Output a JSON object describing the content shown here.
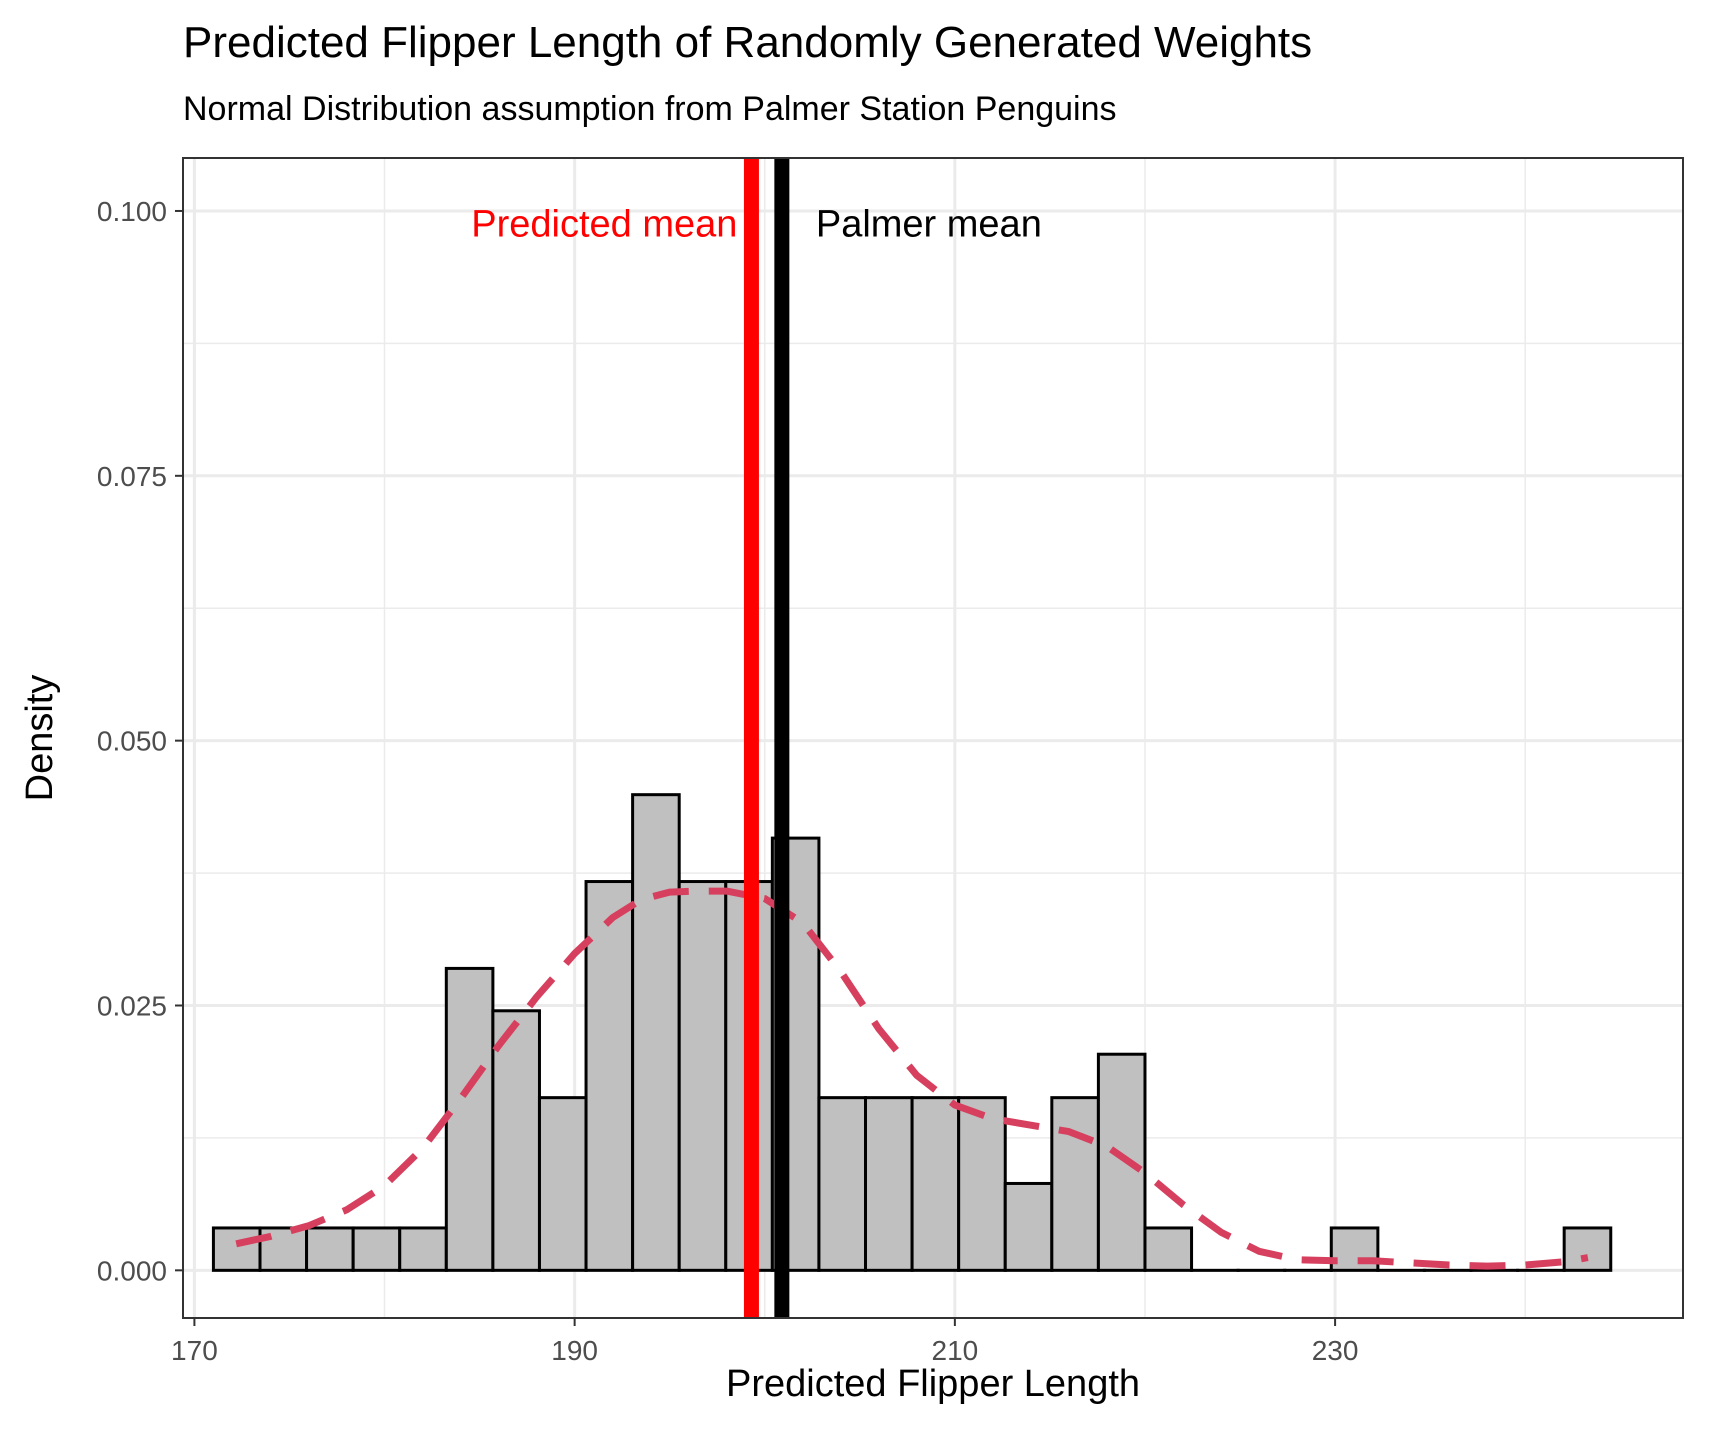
{
  "chart_data": {
    "type": "histogram",
    "title": "Predicted Flipper Length of Randomly Generated Weights",
    "subtitle": "Normal Distribution assumption from Palmer Station Penguins",
    "xlabel": "Predicted Flipper Length",
    "ylabel": "Density",
    "xlim": [
      169.4,
      248.3
    ],
    "ylim": [
      -0.0045,
      0.105
    ],
    "xticks": [
      170,
      190,
      210,
      230
    ],
    "yticks": [
      0.0,
      0.025,
      0.05,
      0.075,
      0.1
    ],
    "xtick_labels": [
      "170",
      "190",
      "210",
      "230"
    ],
    "ytick_labels": [
      "0.000",
      "0.025",
      "0.050",
      "0.075",
      "0.100"
    ],
    "grid": true,
    "bin_width": 2.45,
    "bins": [
      {
        "start": 171.0,
        "density": 0.004
      },
      {
        "start": 173.45,
        "density": 0.004
      },
      {
        "start": 175.9,
        "density": 0.004
      },
      {
        "start": 178.35,
        "density": 0.004
      },
      {
        "start": 180.8,
        "density": 0.004
      },
      {
        "start": 183.25,
        "density": 0.0285
      },
      {
        "start": 185.7,
        "density": 0.0245
      },
      {
        "start": 188.15,
        "density": 0.0163
      },
      {
        "start": 190.6,
        "density": 0.0367
      },
      {
        "start": 193.05,
        "density": 0.0449
      },
      {
        "start": 195.5,
        "density": 0.0367
      },
      {
        "start": 197.95,
        "density": 0.0367
      },
      {
        "start": 200.4,
        "density": 0.0408
      },
      {
        "start": 202.85,
        "density": 0.0163
      },
      {
        "start": 205.3,
        "density": 0.0163
      },
      {
        "start": 207.75,
        "density": 0.0163
      },
      {
        "start": 210.2,
        "density": 0.0163
      },
      {
        "start": 212.65,
        "density": 0.0082
      },
      {
        "start": 215.1,
        "density": 0.0163
      },
      {
        "start": 217.55,
        "density": 0.0204
      },
      {
        "start": 220.0,
        "density": 0.004
      },
      {
        "start": 222.45,
        "density": 0.0
      },
      {
        "start": 224.9,
        "density": 0.0
      },
      {
        "start": 227.35,
        "density": 0.0
      },
      {
        "start": 229.8,
        "density": 0.004
      },
      {
        "start": 232.25,
        "density": 0.0
      },
      {
        "start": 234.7,
        "density": 0.0
      },
      {
        "start": 237.15,
        "density": 0.0
      },
      {
        "start": 239.6,
        "density": 0.0
      },
      {
        "start": 242.05,
        "density": 0.004
      }
    ],
    "density_curve": {
      "x": [
        172.2,
        174,
        176,
        178,
        180,
        182,
        184,
        186,
        188,
        190,
        192,
        193.5,
        195,
        196.5,
        198,
        200,
        202,
        204,
        206,
        208,
        210,
        212,
        214,
        216,
        218,
        220,
        222,
        224,
        226,
        228,
        230,
        232,
        234,
        236,
        238,
        240,
        242,
        243.3
      ],
      "y": [
        0.0025,
        0.0032,
        0.0042,
        0.0057,
        0.008,
        0.0115,
        0.0162,
        0.0212,
        0.0258,
        0.0299,
        0.0333,
        0.035,
        0.0357,
        0.0358,
        0.0358,
        0.0351,
        0.0328,
        0.0282,
        0.0228,
        0.0184,
        0.0156,
        0.0143,
        0.0137,
        0.0131,
        0.0117,
        0.0092,
        0.0062,
        0.0036,
        0.0018,
        0.001,
        0.0009,
        0.0009,
        0.0007,
        0.0005,
        0.0004,
        0.0005,
        0.0008,
        0.0012
      ],
      "color": "#D6405E"
    },
    "vlines": [
      {
        "name": "Predicted mean",
        "x": 199.3,
        "color": "#FF0000"
      },
      {
        "name": "Palmer mean",
        "x": 200.9,
        "color": "#000000"
      }
    ],
    "bar_fill": "#C0C0C0",
    "bar_edge": "#000000"
  }
}
